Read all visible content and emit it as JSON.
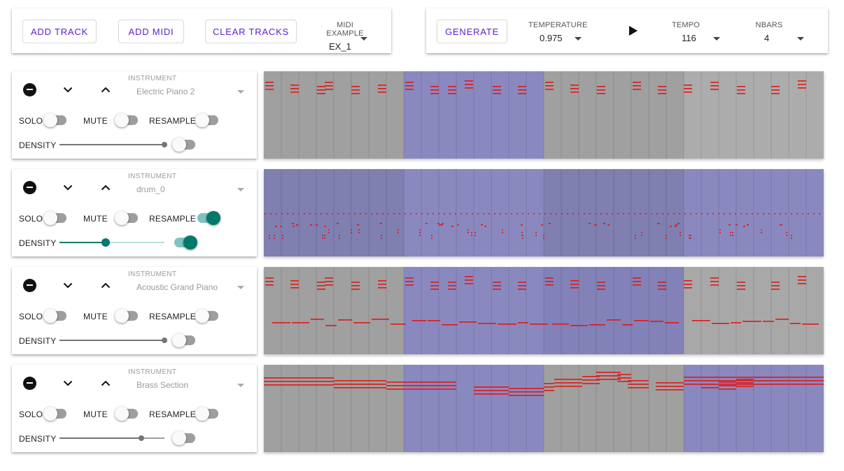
{
  "toolbar_left": {
    "add_track": "ADD TRACK",
    "add_midi": "ADD MIDI",
    "clear_tracks": "CLEAR TRACKS",
    "midi_example_label": "MIDI EXAMPLE",
    "midi_example_value": "EX_1"
  },
  "toolbar_right": {
    "generate": "GENERATE",
    "temperature_label": "TEMPERATURE",
    "temperature_value": "0.975",
    "tempo_label": "TEMPO",
    "tempo_value": "116",
    "nbars_label": "NBARS",
    "nbars_value": "4"
  },
  "track_labels": {
    "instrument": "INSTRUMENT",
    "solo": "SOLO",
    "mute": "MUTE",
    "resample": "RESAMPLE",
    "density": "DENSITY"
  },
  "tracks": [
    {
      "instrument": "Electric Piano 2",
      "solo": false,
      "mute": false,
      "resample": false,
      "density": 1.0,
      "density_toggle": false,
      "density_active": false,
      "bar_colors": [
        "#a0a0a0",
        "#8a89bf",
        "#a0a0a0",
        "#acacac"
      ],
      "pattern": "chords"
    },
    {
      "instrument": "drum_0",
      "solo": false,
      "mute": false,
      "resample": true,
      "density": 0.44,
      "density_toggle": true,
      "density_active": true,
      "bar_colors": [
        "#7f7fb0",
        "#8a89bf",
        "#7f7fb0",
        "#8a89bf"
      ],
      "pattern": "drums"
    },
    {
      "instrument": "Acoustic Grand Piano",
      "solo": false,
      "mute": false,
      "resample": false,
      "density": 1.0,
      "density_toggle": false,
      "density_active": false,
      "bar_colors": [
        "#a0a0a0",
        "#8a89bf",
        "#8282b8",
        "#a8a8a8"
      ],
      "pattern": "chords_bass"
    },
    {
      "instrument": "Brass Section",
      "solo": false,
      "mute": false,
      "resample": false,
      "density": 0.78,
      "density_toggle": false,
      "density_active": false,
      "bar_colors": [
        "#a0a0a0",
        "#8a89bf",
        "#a0a0a0",
        "#8a89bf"
      ],
      "pattern": "brass"
    }
  ],
  "colors": {
    "accent": "#5b21d6",
    "toggle_on": "#00796b",
    "note": "#e01818"
  }
}
